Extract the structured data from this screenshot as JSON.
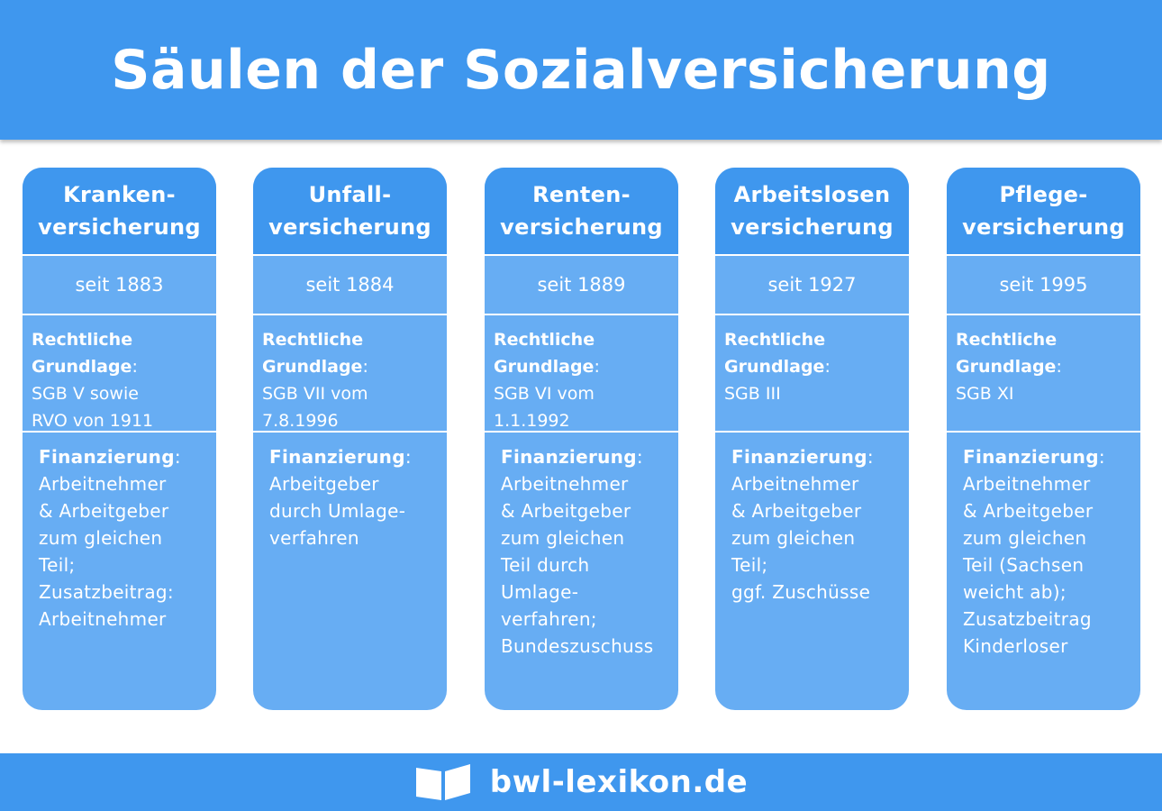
{
  "title": "Säulen der Sozialversicherung",
  "pillars": [
    {
      "name_line1": "Kranken-",
      "name_line2": "versicherung",
      "since": "seit 1883",
      "legal_label": "Rechtliche",
      "legal_label2": "Grundlage",
      "legal_value_lines": [
        "SGB V sowie",
        "RVO von 1911"
      ],
      "finance_label": "Finanzierung",
      "finance_lines": [
        "Arbeitnehmer",
        "& Arbeitgeber",
        "zum gleichen",
        "Teil;",
        "Zusatzbeitrag:",
        "Arbeitnehmer"
      ]
    },
    {
      "name_line1": "Unfall-",
      "name_line2": "versicherung",
      "since": "seit 1884",
      "legal_label": "Rechtliche",
      "legal_label2": "Grundlage",
      "legal_value_lines": [
        "SGB VII vom",
        "7.8.1996"
      ],
      "finance_label": "Finanzierung",
      "finance_lines": [
        "Arbeitgeber",
        "durch Umlage-",
        "verfahren"
      ]
    },
    {
      "name_line1": "Renten-",
      "name_line2": "versicherung",
      "since": "seit 1889",
      "legal_label": "Rechtliche",
      "legal_label2": "Grundlage",
      "legal_value_lines": [
        "SGB VI vom",
        "1.1.1992"
      ],
      "finance_label": "Finanzierung",
      "finance_lines": [
        "Arbeitnehmer",
        "& Arbeitgeber",
        "zum gleichen",
        "Teil durch",
        "Umlage-",
        "verfahren;",
        "Bundeszuschuss"
      ]
    },
    {
      "name_line1": "Arbeitslosen",
      "name_line2": "versicherung",
      "since": "seit 1927",
      "legal_label": "Rechtliche",
      "legal_label2": "Grundlage",
      "legal_value_lines": [
        "SGB III"
      ],
      "finance_label": "Finanzierung",
      "finance_lines": [
        "Arbeitnehmer",
        "& Arbeitgeber",
        "zum gleichen",
        "Teil;",
        "ggf. Zuschüsse"
      ]
    },
    {
      "name_line1": "Pflege-",
      "name_line2": "versicherung",
      "since": "seit 1995",
      "legal_label": "Rechtliche",
      "legal_label2": "Grundlage",
      "legal_value_lines": [
        "SGB XI"
      ],
      "finance_label": "Finanzierung",
      "finance_lines": [
        "Arbeitnehmer",
        "& Arbeitgeber",
        "zum gleichen",
        "Teil (Sachsen",
        "weicht ab);",
        "Zusatzbeitrag",
        "Kinderloser"
      ]
    }
  ],
  "footer": {
    "brand": "bwl-lexikon.de",
    "icon": "open-book-icon"
  },
  "colors": {
    "primary": "#3f97ee",
    "pillar_body": "#67adf3",
    "text": "#ffffff"
  }
}
